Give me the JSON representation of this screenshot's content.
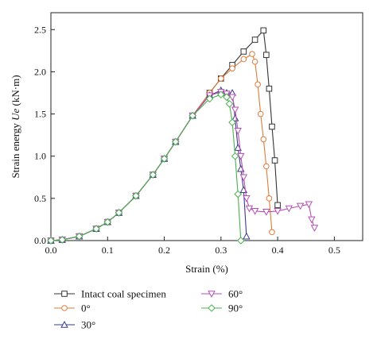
{
  "chart_data": {
    "type": "line",
    "title": "",
    "xlabel": "Strain (%)",
    "ylabel_prefix": "Strain energy ",
    "ylabel_symbol": "Ue",
    "ylabel_unit": " (kN·m)",
    "xlim": [
      0.0,
      0.55
    ],
    "ylim": [
      0.0,
      2.7
    ],
    "xticks": [
      0.0,
      0.1,
      0.2,
      0.3,
      0.4,
      0.5
    ],
    "xtick_labels": [
      "0.0",
      "0.1",
      "0.2",
      "0.3",
      "0.4",
      "0.5"
    ],
    "yticks": [
      0.0,
      0.5,
      1.0,
      1.5,
      2.0,
      2.5
    ],
    "ytick_labels": [
      "0.0",
      "0.5",
      "1.0",
      "1.5",
      "2.0",
      "2.5"
    ],
    "grid": false,
    "legend_position": "bottom",
    "series": [
      {
        "name": "Intact coal specimen",
        "color": "#333333",
        "marker": "square",
        "x": [
          0.0,
          0.02,
          0.05,
          0.08,
          0.1,
          0.12,
          0.15,
          0.18,
          0.2,
          0.22,
          0.25,
          0.28,
          0.3,
          0.32,
          0.34,
          0.36,
          0.375,
          0.38,
          0.385,
          0.39,
          0.395,
          0.4
        ],
        "y": [
          0.0,
          0.01,
          0.05,
          0.14,
          0.22,
          0.33,
          0.53,
          0.78,
          0.97,
          1.17,
          1.48,
          1.75,
          1.92,
          2.08,
          2.24,
          2.38,
          2.49,
          2.2,
          1.8,
          1.35,
          0.95,
          0.42
        ]
      },
      {
        "name": "0°",
        "color": "#e07b39",
        "marker": "circle",
        "x": [
          0.0,
          0.02,
          0.05,
          0.08,
          0.1,
          0.12,
          0.15,
          0.18,
          0.2,
          0.22,
          0.25,
          0.28,
          0.3,
          0.32,
          0.34,
          0.355,
          0.36,
          0.365,
          0.37,
          0.375,
          0.38,
          0.385,
          0.39
        ],
        "y": [
          0.0,
          0.01,
          0.05,
          0.14,
          0.22,
          0.33,
          0.53,
          0.78,
          0.97,
          1.17,
          1.48,
          1.75,
          1.92,
          2.04,
          2.15,
          2.21,
          2.12,
          1.85,
          1.5,
          1.2,
          0.88,
          0.5,
          0.1
        ]
      },
      {
        "name": "30°",
        "color": "#3a3a8c",
        "marker": "triangle-up",
        "x": [
          0.0,
          0.02,
          0.05,
          0.08,
          0.1,
          0.12,
          0.15,
          0.18,
          0.2,
          0.22,
          0.25,
          0.28,
          0.3,
          0.31,
          0.32,
          0.325,
          0.33,
          0.335,
          0.34,
          0.345
        ],
        "y": [
          0.0,
          0.01,
          0.05,
          0.14,
          0.22,
          0.33,
          0.53,
          0.78,
          0.97,
          1.17,
          1.48,
          1.72,
          1.78,
          1.75,
          1.75,
          1.45,
          1.1,
          0.85,
          0.6,
          0.05
        ]
      },
      {
        "name": "60°",
        "color": "#b54fb5",
        "marker": "triangle-down",
        "x": [
          0.0,
          0.02,
          0.05,
          0.08,
          0.1,
          0.12,
          0.15,
          0.18,
          0.2,
          0.22,
          0.25,
          0.28,
          0.3,
          0.31,
          0.32,
          0.325,
          0.33,
          0.335,
          0.34,
          0.345,
          0.35,
          0.36,
          0.38,
          0.4,
          0.42,
          0.44,
          0.455,
          0.46,
          0.465
        ],
        "y": [
          0.0,
          0.01,
          0.05,
          0.14,
          0.22,
          0.33,
          0.53,
          0.78,
          0.97,
          1.17,
          1.48,
          1.72,
          1.76,
          1.74,
          1.7,
          1.55,
          1.3,
          1.0,
          0.75,
          0.5,
          0.38,
          0.35,
          0.34,
          0.35,
          0.38,
          0.41,
          0.43,
          0.25,
          0.15
        ]
      },
      {
        "name": "90°",
        "color": "#4caf50",
        "marker": "diamond",
        "x": [
          0.0,
          0.02,
          0.05,
          0.08,
          0.1,
          0.12,
          0.15,
          0.18,
          0.2,
          0.22,
          0.25,
          0.28,
          0.3,
          0.31,
          0.315,
          0.32,
          0.325,
          0.33,
          0.335
        ],
        "y": [
          0.0,
          0.01,
          0.05,
          0.14,
          0.22,
          0.33,
          0.53,
          0.78,
          0.97,
          1.17,
          1.48,
          1.68,
          1.73,
          1.7,
          1.62,
          1.4,
          1.0,
          0.55,
          0.0
        ]
      }
    ]
  }
}
